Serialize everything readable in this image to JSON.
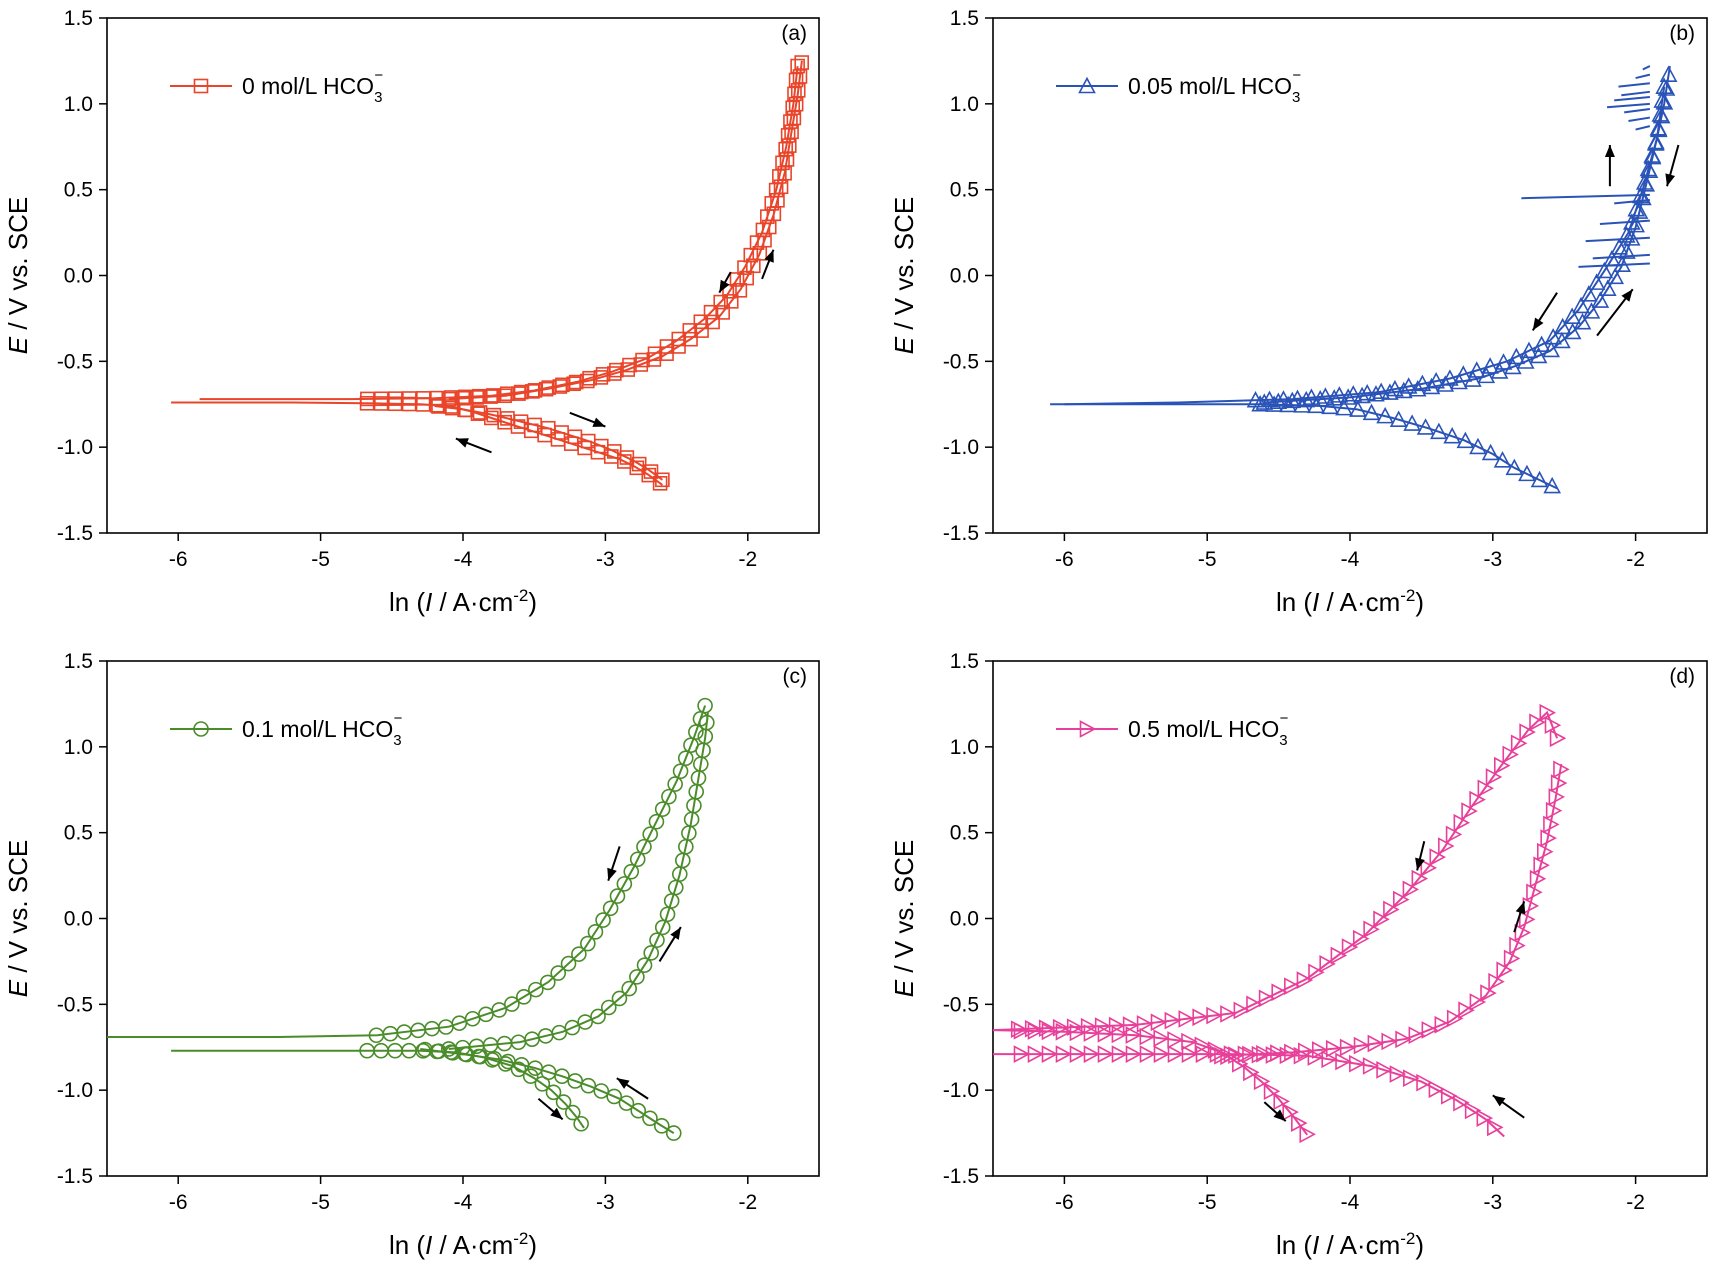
{
  "panels": [
    {
      "id": "a",
      "label": "(a)",
      "legend": {
        "main": "0 mol/L HCO",
        "sub": "3",
        "sup": "−"
      },
      "color": "#e8452a",
      "marker": "square",
      "ylabel": {
        "italic": "E",
        "rest": " / V vs. SCE"
      },
      "xlabel": {
        "pre": "ln (",
        "italic": "I",
        "post": " / A·cm",
        "sup": "-2",
        "end": ")"
      }
    },
    {
      "id": "b",
      "label": "(b)",
      "legend": {
        "main": "0.05 mol/L HCO",
        "sub": "3",
        "sup": "−"
      },
      "color": "#2a53b8",
      "marker": "triangle-up",
      "ylabel": {
        "italic": "E",
        "rest": " / V vs. SCE"
      },
      "xlabel": {
        "pre": "ln (",
        "italic": "I",
        "post": " / A·cm",
        "sup": "-2",
        "end": ")"
      }
    },
    {
      "id": "c",
      "label": "(c)",
      "legend": {
        "main": "0.1 mol/L HCO",
        "sub": "3",
        "sup": "−"
      },
      "color": "#4a8c2a",
      "marker": "circle",
      "ylabel": {
        "italic": "E",
        "rest": " / V vs. SCE"
      },
      "xlabel": {
        "pre": "ln (",
        "italic": "I",
        "post": " / A·cm",
        "sup": "-2",
        "end": ")"
      }
    },
    {
      "id": "d",
      "label": "(d)",
      "legend": {
        "main": "0.5 mol/L HCO",
        "sub": "3",
        "sup": "−"
      },
      "color": "#e8409a",
      "marker": "triangle-right",
      "ylabel": {
        "italic": "E",
        "rest": " / V vs. SCE"
      },
      "xlabel": {
        "pre": "ln (",
        "italic": "I",
        "post": " / A·cm",
        "sup": "-2",
        "end": ")"
      }
    }
  ],
  "chart_data": [
    {
      "type": "line",
      "panel": "a",
      "xlim": [
        -6.5,
        -1.5
      ],
      "ylim": [
        -1.5,
        1.5
      ],
      "xticks": [
        -6,
        -5,
        -4,
        -3,
        -2
      ],
      "yticks": [
        -1.5,
        -1.0,
        -0.5,
        0.0,
        0.5,
        1.0,
        1.5
      ],
      "xtick_labels": [
        "-6",
        "-5",
        "-4",
        "-3",
        "-2"
      ],
      "ytick_labels": [
        "-1.5",
        "-1.0",
        "-0.5",
        "0.0",
        "0.5",
        "1.0",
        "1.5"
      ],
      "series": [
        {
          "name": "0 mol/L HCO3−",
          "role": "forward",
          "x": [
            -6.05,
            -5.2,
            -4.6,
            -4.3,
            -4.1,
            -3.95,
            -3.8,
            -3.65,
            -3.5,
            -3.35,
            -3.2,
            -3.05,
            -2.9,
            -2.8,
            -2.7,
            -2.6
          ],
          "y": [
            -0.74,
            -0.74,
            -0.745,
            -0.75,
            -0.76,
            -0.79,
            -0.83,
            -0.87,
            -0.91,
            -0.95,
            -0.99,
            -1.03,
            -1.07,
            -1.11,
            -1.16,
            -1.22
          ]
        },
        {
          "name": "0 mol/L HCO3−",
          "role": "anodic-forward",
          "x": [
            -4.1,
            -3.7,
            -3.4,
            -3.1,
            -2.85,
            -2.6,
            -2.4,
            -2.2,
            -2.05,
            -1.92,
            -1.82,
            -1.74,
            -1.69,
            -1.65,
            -1.62
          ],
          "y": [
            -0.72,
            -0.7,
            -0.66,
            -0.61,
            -0.55,
            -0.47,
            -0.37,
            -0.24,
            -0.08,
            0.12,
            0.35,
            0.6,
            0.85,
            1.05,
            1.25
          ]
        },
        {
          "name": "0 mol/L HCO3−",
          "role": "reverse",
          "x": [
            -1.65,
            -1.68,
            -1.73,
            -1.8,
            -1.9,
            -2.02,
            -2.15,
            -2.3,
            -2.5,
            -2.7,
            -2.95,
            -3.2,
            -3.5,
            -3.8,
            -4.2,
            -4.8,
            -5.5,
            -5.85
          ],
          "y": [
            1.22,
            1.0,
            0.75,
            0.5,
            0.25,
            0.05,
            -0.12,
            -0.25,
            -0.38,
            -0.48,
            -0.56,
            -0.62,
            -0.67,
            -0.7,
            -0.715,
            -0.72,
            -0.72,
            -0.72
          ]
        },
        {
          "name": "0 mol/L HCO3−",
          "role": "cathodic-reverse",
          "x": [
            -2.6,
            -2.7,
            -2.8,
            -2.95,
            -3.1,
            -3.25,
            -3.4,
            -3.6,
            -3.8,
            -4.0,
            -4.2
          ],
          "y": [
            -1.19,
            -1.13,
            -1.08,
            -1.02,
            -0.97,
            -0.93,
            -0.89,
            -0.85,
            -0.81,
            -0.78,
            -0.76
          ]
        }
      ],
      "annotations": [
        {
          "type": "arrow",
          "x1": -2.12,
          "y1": 0.02,
          "x2": -2.2,
          "y2": -0.1
        },
        {
          "type": "arrow",
          "x1": -1.9,
          "y1": -0.02,
          "x2": -1.82,
          "y2": 0.15
        },
        {
          "type": "arrow",
          "x1": -3.25,
          "y1": -0.8,
          "x2": -3.0,
          "y2": -0.88
        },
        {
          "type": "arrow",
          "x1": -3.8,
          "y1": -1.03,
          "x2": -4.05,
          "y2": -0.95
        }
      ]
    },
    {
      "type": "line",
      "panel": "b",
      "xlim": [
        -6.5,
        -1.5
      ],
      "ylim": [
        -1.5,
        1.5
      ],
      "xticks": [
        -6,
        -5,
        -4,
        -3,
        -2
      ],
      "yticks": [
        -1.5,
        -1.0,
        -0.5,
        0.0,
        0.5,
        1.0,
        1.5
      ],
      "xtick_labels": [
        "-6",
        "-5",
        "-4",
        "-3",
        "-2"
      ],
      "ytick_labels": [
        "-1.5",
        "-1.0",
        "-0.5",
        "0.0",
        "0.5",
        "1.0",
        "1.5"
      ],
      "series": [
        {
          "name": "0.05 mol/L HCO3−",
          "role": "forward",
          "x": [
            -6.1,
            -5.2,
            -4.6,
            -4.2,
            -3.95,
            -3.7,
            -3.45,
            -3.2,
            -3.0,
            -2.85,
            -2.7,
            -2.55
          ],
          "y": [
            -0.75,
            -0.75,
            -0.75,
            -0.76,
            -0.78,
            -0.83,
            -0.89,
            -0.96,
            -1.04,
            -1.12,
            -1.18,
            -1.24
          ]
        },
        {
          "name": "0.05 mol/L HCO3−",
          "role": "anodic-forward",
          "x": [
            -4.6,
            -4.0,
            -3.5,
            -3.1,
            -2.85,
            -2.6,
            -2.4,
            -2.25,
            -2.1,
            -2.0,
            -1.92,
            -1.85,
            -1.8,
            -1.76
          ],
          "y": [
            -0.74,
            -0.71,
            -0.66,
            -0.6,
            -0.53,
            -0.44,
            -0.3,
            -0.15,
            0.05,
            0.28,
            0.55,
            0.8,
            1.0,
            1.22
          ]
        },
        {
          "name": "0.05 mol/L HCO3−",
          "role": "reverse",
          "x": [
            -1.8,
            -1.85,
            -1.95,
            -2.05,
            -2.2,
            -2.4,
            -2.6,
            -2.9,
            -3.3,
            -3.8,
            -4.4,
            -5.2,
            -6.0
          ],
          "y": [
            1.1,
            0.8,
            0.5,
            0.25,
            0.05,
            -0.2,
            -0.38,
            -0.5,
            -0.6,
            -0.68,
            -0.72,
            -0.74,
            -0.75
          ]
        }
      ],
      "annotations": [
        {
          "type": "arrow",
          "x1": -2.18,
          "y1": 0.52,
          "x2": -2.18,
          "y2": 0.76
        },
        {
          "type": "arrow",
          "x1": -1.7,
          "y1": 0.76,
          "x2": -1.78,
          "y2": 0.52
        },
        {
          "type": "arrow",
          "x1": -2.55,
          "y1": -0.1,
          "x2": -2.72,
          "y2": -0.32
        },
        {
          "type": "arrow",
          "x1": -2.27,
          "y1": -0.35,
          "x2": -2.02,
          "y2": -0.08
        }
      ]
    },
    {
      "type": "line",
      "panel": "c",
      "xlim": [
        -6.5,
        -1.5
      ],
      "ylim": [
        -1.5,
        1.5
      ],
      "xticks": [
        -6,
        -5,
        -4,
        -3,
        -2
      ],
      "yticks": [
        -1.5,
        -1.0,
        -0.5,
        0.0,
        0.5,
        1.0,
        1.5
      ],
      "xtick_labels": [
        "-6",
        "-5",
        "-4",
        "-3",
        "-2"
      ],
      "ytick_labels": [
        "-1.5",
        "-1.0",
        "-0.5",
        "0.0",
        "0.5",
        "1.0",
        "1.5"
      ],
      "series": [
        {
          "name": "0.1 mol/L HCO3−",
          "role": "forward-cathodic",
          "x": [
            -6.05,
            -5.3,
            -4.7,
            -4.3,
            -4.05,
            -3.85,
            -3.65,
            -3.5,
            -3.38,
            -3.28,
            -3.2,
            -3.15
          ],
          "y": [
            -0.77,
            -0.77,
            -0.77,
            -0.77,
            -0.78,
            -0.81,
            -0.86,
            -0.93,
            -1.0,
            -1.08,
            -1.16,
            -1.22
          ]
        },
        {
          "name": "0.1 mol/L HCO3−",
          "role": "anodic-forward",
          "x": [
            -4.1,
            -3.6,
            -3.3,
            -3.05,
            -2.85,
            -2.7,
            -2.58,
            -2.48,
            -2.4,
            -2.34,
            -2.3,
            -2.28
          ],
          "y": [
            -0.76,
            -0.72,
            -0.66,
            -0.57,
            -0.43,
            -0.24,
            -0.02,
            0.25,
            0.55,
            0.85,
            1.05,
            1.2
          ]
        },
        {
          "name": "0.1 mol/L HCO3−",
          "role": "reverse",
          "x": [
            -2.3,
            -2.38,
            -2.5,
            -2.65,
            -2.8,
            -2.97,
            -3.15,
            -3.4,
            -3.7,
            -4.1,
            -4.6,
            -5.3,
            -6.5
          ],
          "y": [
            1.24,
            1.05,
            0.8,
            0.55,
            0.3,
            0.05,
            -0.18,
            -0.37,
            -0.52,
            -0.63,
            -0.68,
            -0.69,
            -0.69
          ]
        },
        {
          "name": "0.1 mol/L HCO3−",
          "role": "cathodic-reverse",
          "x": [
            -2.52,
            -2.62,
            -2.75,
            -2.9,
            -3.1,
            -3.3,
            -3.5,
            -3.75,
            -4.0,
            -4.3
          ],
          "y": [
            -1.25,
            -1.2,
            -1.13,
            -1.05,
            -0.98,
            -0.92,
            -0.87,
            -0.82,
            -0.79,
            -0.76
          ]
        }
      ],
      "annotations": [
        {
          "type": "arrow",
          "x1": -2.9,
          "y1": 0.42,
          "x2": -2.98,
          "y2": 0.22
        },
        {
          "type": "arrow",
          "x1": -2.62,
          "y1": -0.25,
          "x2": -2.47,
          "y2": -0.05
        },
        {
          "type": "arrow",
          "x1": -2.7,
          "y1": -1.05,
          "x2": -2.92,
          "y2": -0.93
        },
        {
          "type": "arrow",
          "x1": -3.47,
          "y1": -1.05,
          "x2": -3.3,
          "y2": -1.17
        }
      ]
    },
    {
      "type": "line",
      "panel": "d",
      "xlim": [
        -6.5,
        -1.5
      ],
      "ylim": [
        -1.5,
        1.5
      ],
      "xticks": [
        -6,
        -5,
        -4,
        -3,
        -2
      ],
      "yticks": [
        -1.5,
        -1.0,
        -0.5,
        0.0,
        0.5,
        1.0,
        1.5
      ],
      "xtick_labels": [
        "-6",
        "-5",
        "-4",
        "-3",
        "-2"
      ],
      "ytick_labels": [
        "-1.5",
        "-1.0",
        "-0.5",
        "0.0",
        "0.5",
        "1.0",
        "1.5"
      ],
      "series": [
        {
          "name": "0.5 mol/L HCO3−",
          "role": "forward-cathodic",
          "x": [
            -6.5,
            -6.0,
            -5.5,
            -5.1,
            -4.9,
            -4.75,
            -4.62,
            -4.5,
            -4.4,
            -4.3
          ],
          "y": [
            -0.65,
            -0.66,
            -0.68,
            -0.72,
            -0.78,
            -0.86,
            -0.95,
            -1.05,
            -1.15,
            -1.26
          ]
        },
        {
          "name": "0.5 mol/L HCO3−",
          "role": "anodic-forward",
          "x": [
            -4.9,
            -4.4,
            -4.0,
            -3.6,
            -3.3,
            -3.05,
            -2.88,
            -2.78,
            -2.7,
            -2.62,
            -2.56,
            -2.52
          ],
          "y": [
            -0.8,
            -0.78,
            -0.75,
            -0.7,
            -0.6,
            -0.45,
            -0.25,
            -0.05,
            0.2,
            0.45,
            0.7,
            0.9
          ]
        },
        {
          "name": "0.5 mol/L HCO3−",
          "role": "reverse",
          "x": [
            -2.55,
            -2.62,
            -2.75,
            -2.95,
            -3.15,
            -3.35,
            -3.6,
            -3.9,
            -4.3,
            -4.8,
            -5.5,
            -6.5
          ],
          "y": [
            1.05,
            1.2,
            1.1,
            0.88,
            0.65,
            0.4,
            0.15,
            -0.1,
            -0.35,
            -0.55,
            -0.62,
            -0.65
          ]
        },
        {
          "name": "0.5 mol/L HCO3−",
          "role": "cathodic-reverse",
          "x": [
            -6.5,
            -5.8,
            -5.2,
            -4.8,
            -4.3,
            -3.85,
            -3.5,
            -3.25,
            -3.05,
            -2.92
          ],
          "y": [
            -0.79,
            -0.79,
            -0.79,
            -0.79,
            -0.8,
            -0.86,
            -0.95,
            -1.06,
            -1.17,
            -1.27
          ]
        }
      ],
      "annotations": [
        {
          "type": "arrow",
          "x1": -3.48,
          "y1": 0.45,
          "x2": -3.53,
          "y2": 0.28
        },
        {
          "type": "arrow",
          "x1": -2.85,
          "y1": -0.08,
          "x2": -2.78,
          "y2": 0.1
        },
        {
          "type": "arrow",
          "x1": -2.78,
          "y1": -1.16,
          "x2": -3.0,
          "y2": -1.03
        },
        {
          "type": "arrow",
          "x1": -4.6,
          "y1": -1.07,
          "x2": -4.45,
          "y2": -1.18
        }
      ]
    }
  ]
}
